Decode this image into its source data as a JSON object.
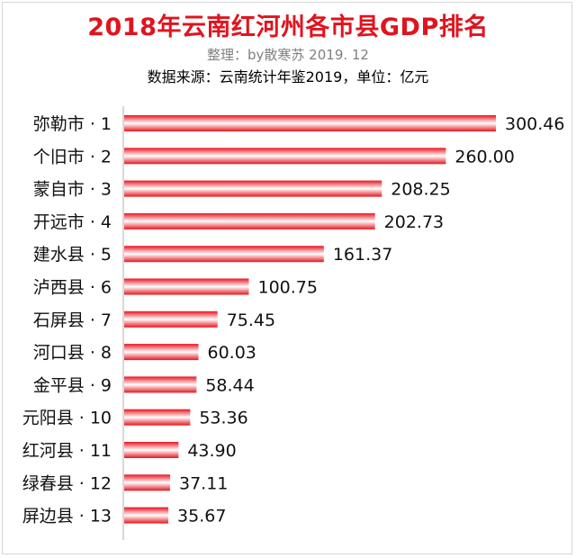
{
  "chart_data": {
    "type": "bar",
    "orientation": "horizontal",
    "title": "2018年云南红河州各市县GDP排名",
    "subtitle": "整理：by散寒苏 2019. 12",
    "source_note": "数据来源：云南统计年鉴2019，单位：亿元",
    "categories": [
      "弥勒市 · 1",
      "个旧市 · 2",
      "蒙自市 · 3",
      "开远市 · 4",
      "建水县 · 5",
      "泸西县 · 6",
      "石屏县 · 7",
      "河口县 · 8",
      "金平县 · 9",
      "元阳县 · 10",
      "红河县 · 11",
      "绿春县 · 12",
      "屏边县 · 13"
    ],
    "values": [
      300.46,
      260.0,
      208.25,
      202.73,
      161.37,
      100.75,
      75.45,
      60.03,
      58.44,
      53.36,
      43.9,
      37.11,
      35.67
    ],
    "value_labels": [
      "300.46",
      "260.00",
      "208.25",
      "202.73",
      "161.37",
      "100.75",
      "75.45",
      "60.03",
      "58.44",
      "53.36",
      "43.90",
      "37.11",
      "35.67"
    ],
    "xlim": [
      0,
      300.46
    ],
    "grid": false,
    "legend": "none",
    "colors": {
      "bar_edge": "#e8141e",
      "bar_highlight": "#ffffff",
      "title": "#e0141e",
      "axis": "#b0b0b0"
    }
  }
}
